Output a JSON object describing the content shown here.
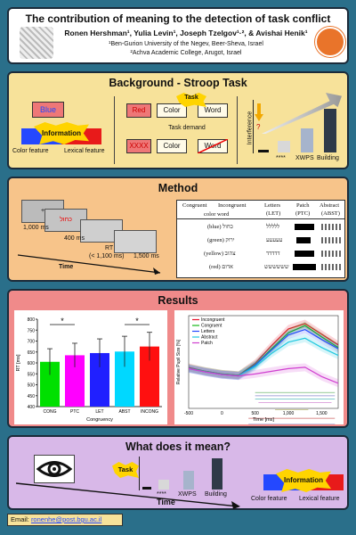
{
  "header": {
    "title": "The contribution of meaning to the detection of task conflict",
    "authors": "Ronen Hershman¹, Yulia Levin¹, Joseph Tzelgov¹·², & Avishai Henik¹",
    "affil1": "¹Ben-Gurion University of the Negev, Beer-Sheva, Israel",
    "affil2": "²Achva Academic College, Arugot, Israel"
  },
  "background": {
    "title": "Background - Stroop Task",
    "word_blue": "Blue",
    "info": "Information",
    "color_feature": "Color feature",
    "lexical_feature": "Lexical feature",
    "red": "Red",
    "color": "Color",
    "word": "Word",
    "task": "Task",
    "task_demand": "Task demand",
    "xxxx": "XXXX",
    "interference": "Interference",
    "stars": "****",
    "xwps": "XWPS",
    "building": "Building",
    "q": "?",
    "colors": {
      "panel": "#f7e29a",
      "red_box": "#e77",
      "bar_light": "#d8d8d8",
      "bar_mid": "#a6b4cc",
      "bar_dark": "#2f3a48"
    }
  },
  "method": {
    "title": "Method",
    "t1": "1,000 ms",
    "t2": "400 ms",
    "rt": "RT",
    "rt2": "(< 1,100 ms)",
    "t3": "1,500 ms",
    "time": "Time",
    "plus": "+",
    "stim": "כחול",
    "table": {
      "h_cong": "Congruent",
      "h_incong": "Incongruent",
      "h_cw": "color word",
      "h_let": "Letters",
      "h_let2": "(LET)",
      "h_patch": "Patch",
      "h_patch2": "(PTC)",
      "h_abs": "Abstract",
      "h_abs2": "(ABST)",
      "rows": [
        {
          "word": "(blue) כחול",
          "let": "ללללל"
        },
        {
          "word": "(green) ירוק",
          "let": "עעעעע"
        },
        {
          "word": "(yellow) צהוב",
          "let": "דדדדד"
        },
        {
          "word": "(red) אדום",
          "let": "שששששש"
        }
      ]
    }
  },
  "results": {
    "title": "Results",
    "bar_chart": {
      "type": "bar",
      "ylabel": "RT [ms]",
      "xlabel": "Congruency",
      "categories": [
        "CONG",
        "PTC",
        "LET",
        "ABST",
        "INCONG"
      ],
      "values": [
        605,
        635,
        645,
        652,
        675
      ],
      "errors": [
        60,
        55,
        65,
        70,
        65
      ],
      "ylim": [
        400,
        800
      ],
      "yticks": [
        "400",
        "450",
        "500",
        "550",
        "600",
        "650",
        "700",
        "750",
        "800"
      ],
      "colors": [
        "#00e000",
        "#ff00ff",
        "#2020ff",
        "#00d8ff",
        "#ff1010"
      ],
      "star": "*"
    },
    "line_chart": {
      "type": "line",
      "ylabel": "Relative Pupil Size [%]",
      "xlabel": "Time [ms]",
      "xlim": [
        -500,
        1750
      ],
      "ylim": [
        -0.4,
        1.0
      ],
      "xticks": [
        "-500",
        "0",
        "500",
        "1,000",
        "1,500"
      ],
      "legend": [
        "Incongruent",
        "Congruent",
        "Letters",
        "Abstract",
        "Patch"
      ],
      "colors": [
        "#e8102a",
        "#18b818",
        "#2448ff",
        "#20c8e0",
        "#d040d0"
      ],
      "x": [
        -500,
        -250,
        0,
        250,
        500,
        750,
        1000,
        1250,
        1500,
        1750
      ],
      "series": [
        {
          "name": "Incongruent",
          "values": [
            0.22,
            0.16,
            0.12,
            0.1,
            0.28,
            0.55,
            0.8,
            0.88,
            0.72,
            0.56
          ]
        },
        {
          "name": "Congruent",
          "values": [
            0.21,
            0.16,
            0.12,
            0.1,
            0.26,
            0.5,
            0.74,
            0.85,
            0.68,
            0.52
          ]
        },
        {
          "name": "Letters",
          "values": [
            0.2,
            0.15,
            0.11,
            0.09,
            0.25,
            0.48,
            0.71,
            0.79,
            0.64,
            0.5
          ]
        },
        {
          "name": "Abstract",
          "values": [
            0.2,
            0.15,
            0.11,
            0.09,
            0.23,
            0.43,
            0.6,
            0.66,
            0.52,
            0.4
          ]
        },
        {
          "name": "Patch",
          "values": [
            0.2,
            0.15,
            0.11,
            0.09,
            0.12,
            0.16,
            0.2,
            0.22,
            0.08,
            -0.02
          ]
        }
      ]
    }
  },
  "meaning": {
    "title": "What does it mean?",
    "task": "Task",
    "stars": "****",
    "xwps": "XWPS",
    "building": "Building",
    "info": "Information",
    "color_feature": "Color feature",
    "lexical_feature": "Lexical feature",
    "time": "Time"
  },
  "footer": {
    "email_label": "Email:",
    "email": "ronenhe@post.bgu.ac.il"
  }
}
